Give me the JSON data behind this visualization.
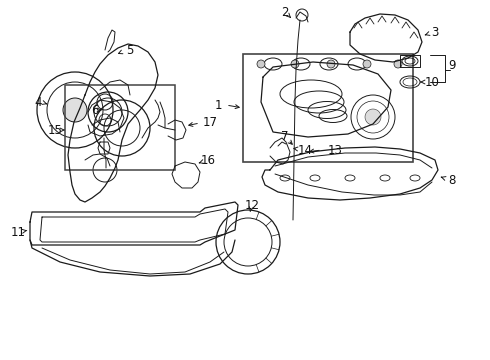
{
  "background_color": "#ffffff",
  "line_color": "#1a1a1a",
  "fig_width": 4.9,
  "fig_height": 3.6,
  "dpi": 100,
  "font_size": 8.5,
  "label_color": "#111111"
}
